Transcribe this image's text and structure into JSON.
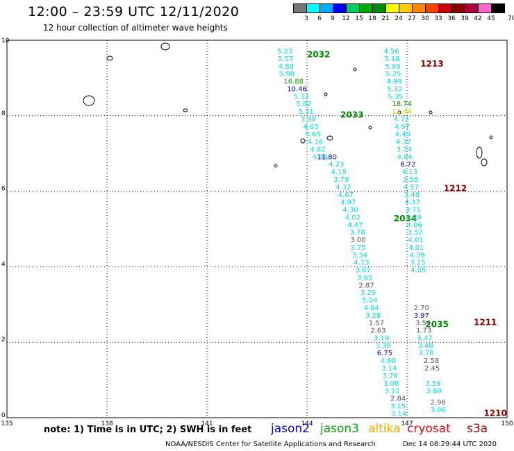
{
  "title": "12:00 – 23:59 UTC 12/11/2020",
  "subtitle": "12 hour collection of altimeter wave heights",
  "colorbar": {
    "labels": [
      "3",
      "6",
      "9",
      "12",
      "15",
      "18",
      "21",
      "24",
      "27",
      "30",
      "33",
      "36",
      "39",
      "42",
      "45",
      "70 (ft)"
    ],
    "colors": [
      "#777777",
      "#00ffff",
      "#00aaff",
      "#0000ee",
      "#00cc66",
      "#00aa00",
      "#008800",
      "#ffff00",
      "#ffcc00",
      "#ff8800",
      "#ff4400",
      "#cc0000",
      "#880000",
      "#aa0044",
      "#ff66cc",
      "#000000"
    ]
  },
  "axes": {
    "x_ticks": [
      "135",
      "138",
      "141",
      "144",
      "147",
      "150"
    ],
    "y_ticks": [
      "0",
      "2",
      "4",
      "6",
      "8",
      "10"
    ]
  },
  "passes": [
    {
      "id": "2032",
      "color": "#008800",
      "lon": 144.0,
      "lat": 9.55
    },
    {
      "id": "2033",
      "color": "#008800",
      "lon": 145.0,
      "lat": 7.95
    },
    {
      "id": "2034",
      "color": "#008800",
      "lon": 146.6,
      "lat": 5.2
    },
    {
      "id": "2035",
      "color": "#008800",
      "lon": 147.55,
      "lat": 2.4
    },
    {
      "id": "1213",
      "color": "#880000",
      "lon": 147.4,
      "lat": 9.3
    },
    {
      "id": "1212",
      "color": "#880000",
      "lon": 148.1,
      "lat": 6.0
    },
    {
      "id": "1211",
      "color": "#880000",
      "lon": 149.0,
      "lat": 2.45
    },
    {
      "id": "1210",
      "color": "#880000",
      "lon": 149.3,
      "lat": 0.05
    }
  ],
  "tracks": [
    {
      "color": "#00dddd",
      "values": [
        "5.23",
        "5.57",
        "4.88",
        "5.98"
      ],
      "lon0": 143.1,
      "lat0": 9.65,
      "dlon": 0.02,
      "dlat": -0.2
    },
    {
      "color": "#00aa00",
      "values": [
        "16.88"
      ],
      "lon0": 143.3,
      "lat0": 8.85,
      "dlon": 0,
      "dlat": 0
    },
    {
      "color": "#0000cc",
      "values": [
        "10.46"
      ],
      "lon0": 143.4,
      "lat0": 8.65,
      "dlon": 0,
      "dlat": 0
    },
    {
      "color": "#00dddd",
      "values": [
        "5.32",
        "5.82",
        "5.11",
        "3.98",
        "4.63",
        "4.65",
        "4.16",
        "4.82",
        "4.46"
      ],
      "lon0": 143.6,
      "lat0": 8.45,
      "dlon": 0.07,
      "dlat": -0.2
    },
    {
      "color": "#0000cc",
      "values": [
        "11.80"
      ],
      "lon0": 144.3,
      "lat0": 6.85,
      "dlon": 0,
      "dlat": 0
    },
    {
      "color": "#00dddd",
      "values": [
        "4.23",
        "4.18",
        "3.79",
        "4.32",
        "4.67",
        "4.97",
        "4.30",
        "4.02",
        "4.47",
        "3.78"
      ],
      "lon0": 144.65,
      "lat0": 6.65,
      "dlon": 0.07,
      "dlat": -0.2
    },
    {
      "color": "#555555",
      "values": [
        "3.00"
      ],
      "lon0": 145.3,
      "lat0": 4.65,
      "dlon": 0,
      "dlat": 0
    },
    {
      "color": "#00dddd",
      "values": [
        "3.75",
        "3.34",
        "4.13",
        "3.07",
        "3.65"
      ],
      "lon0": 145.3,
      "lat0": 4.45,
      "dlon": 0.05,
      "dlat": -0.2
    },
    {
      "color": "#555555",
      "values": [
        "2.87"
      ],
      "lon0": 145.55,
      "lat0": 3.45,
      "dlon": 0,
      "dlat": 0
    },
    {
      "color": "#00dddd",
      "values": [
        "3.29",
        "5.04",
        "4.84",
        "3.28"
      ],
      "lon0": 145.6,
      "lat0": 3.25,
      "dlon": 0.05,
      "dlat": -0.2
    },
    {
      "color": "#555555",
      "values": [
        "1.57",
        "2.63"
      ],
      "lon0": 145.85,
      "lat0": 2.45,
      "dlon": 0.05,
      "dlat": -0.2
    },
    {
      "color": "#00dddd",
      "values": [
        "3.19",
        "3.39"
      ],
      "lon0": 146.0,
      "lat0": 2.05,
      "dlon": 0.05,
      "dlat": -0.2
    },
    {
      "color": "#0000cc",
      "values": [
        "6.75"
      ],
      "lon0": 146.1,
      "lat0": 1.65,
      "dlon": 0,
      "dlat": 0
    },
    {
      "color": "#00dddd",
      "values": [
        "4.60",
        "3.14",
        "3.76",
        "3.08",
        "3.12"
      ],
      "lon0": 146.2,
      "lat0": 1.45,
      "dlon": 0.03,
      "dlat": -0.2
    },
    {
      "color": "#555555",
      "values": [
        "2.84"
      ],
      "lon0": 146.5,
      "lat0": 0.45,
      "dlon": 0,
      "dlat": 0
    },
    {
      "color": "#00dddd",
      "values": [
        "3.15",
        "3.14"
      ],
      "lon0": 146.5,
      "lat0": 0.25,
      "dlon": 0.02,
      "dlat": -0.2
    },
    {
      "color": "#00dddd",
      "values": [
        "4.56",
        "5.18",
        "5.89",
        "5.25",
        "4.99",
        "5.32",
        "5.35"
      ],
      "lon0": 146.3,
      "lat0": 9.65,
      "dlon": 0.02,
      "dlat": -0.2
    },
    {
      "color": "#008800",
      "values": [
        "18.74"
      ],
      "lon0": 146.55,
      "lat0": 8.25,
      "dlon": 0,
      "dlat": 0
    },
    {
      "color": "#aadd00",
      "values": [
        "12.44"
      ],
      "lon0": 146.55,
      "lat0": 8.05,
      "dlon": 0,
      "dlat": 0
    },
    {
      "color": "#00dddd",
      "values": [
        "4.72",
        "4.97",
        "4.40",
        "4.37",
        "3.74",
        "4.04"
      ],
      "lon0": 146.6,
      "lat0": 7.85,
      "dlon": 0.02,
      "dlat": -0.2
    },
    {
      "color": "#0000cc",
      "values": [
        "6.72"
      ],
      "lon0": 146.8,
      "lat0": 6.65,
      "dlon": 0,
      "dlat": 0
    },
    {
      "color": "#00dddd",
      "values": [
        "4.13",
        "3.58",
        "4.57",
        "3.48",
        "4.37",
        "3.71",
        "3.29",
        "4.06",
        "3.52",
        "4.01",
        "4.01",
        "4.39",
        "3.15",
        "4.05"
      ],
      "lon0": 146.85,
      "lat0": 6.45,
      "dlon": 0.02,
      "dlat": -0.2
    },
    {
      "color": "#555555",
      "values": [
        "2.70"
      ],
      "lon0": 147.2,
      "lat0": 2.85,
      "dlon": 0,
      "dlat": 0
    },
    {
      "color": "#0000cc",
      "values": [
        "3.97"
      ],
      "lon0": 147.2,
      "lat0": 2.65,
      "dlon": 0,
      "dlat": 0
    },
    {
      "color": "#555555",
      "values": [
        "3.54",
        "1.73"
      ],
      "lon0": 147.25,
      "lat0": 2.45,
      "dlon": 0.02,
      "dlat": -0.2
    },
    {
      "color": "#00dddd",
      "values": [
        "3.47",
        "3.48",
        "3.78"
      ],
      "lon0": 147.3,
      "lat0": 2.05,
      "dlon": 0.02,
      "dlat": -0.2
    },
    {
      "color": "#555555",
      "values": [
        "2.58",
        "2.45"
      ],
      "lon0": 147.5,
      "lat0": 1.45,
      "dlon": 0.02,
      "dlat": -0.2
    },
    {
      "color": "#00dddd",
      "values": [
        "3.59",
        "3.80"
      ],
      "lon0": 147.55,
      "lat0": 0.85,
      "dlon": 0.02,
      "dlat": -0.2
    },
    {
      "color": "#555555",
      "values": [
        "2.96"
      ],
      "lon0": 147.7,
      "lat0": 0.35,
      "dlon": 0,
      "dlat": 0
    },
    {
      "color": "#00dddd",
      "values": [
        "3.06"
      ],
      "lon0": 147.7,
      "lat0": 0.15,
      "dlon": 0,
      "dlat": 0
    }
  ],
  "note": "note:  1) Time is in UTC; 2) SWH is in feet",
  "legend": [
    {
      "name": "jason2",
      "color": "#0000dd"
    },
    {
      "name": "jason3",
      "color": "#00aa00"
    },
    {
      "name": "altika",
      "color": "#ffaa00"
    },
    {
      "name": "cryosat",
      "color": "#ee0000"
    },
    {
      "name": "s3a",
      "color": "#990000"
    }
  ],
  "credit": "NOAA/NESDIS Center for Satellite Applications and Research",
  "timestamp": "Dec 14 08:29:44 UTC 2020"
}
